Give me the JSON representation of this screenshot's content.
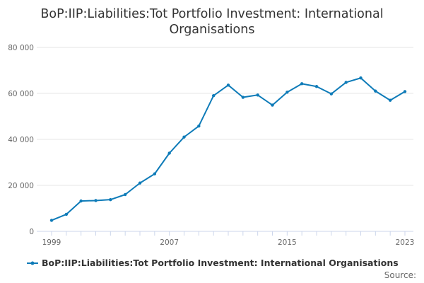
{
  "colors": {
    "series": "#0e7bb8",
    "grid": "#e6e6e6",
    "axis": "#ccd6eb",
    "text": "#333333",
    "tick_text": "#666666"
  },
  "chart_data": {
    "type": "line",
    "title": "BoP:IIP:Liabilities:Tot Portfolio Investment: International Organisations",
    "title_lines": [
      "BoP:IIP:Liabilities:Tot Portfolio Investment: International",
      "Organisations"
    ],
    "xlabel": "",
    "ylabel": "",
    "x": [
      1999,
      2000,
      2001,
      2002,
      2003,
      2004,
      2005,
      2006,
      2007,
      2008,
      2009,
      2010,
      2011,
      2012,
      2013,
      2014,
      2015,
      2016,
      2017,
      2018,
      2019,
      2020,
      2021,
      2022,
      2023
    ],
    "series": [
      {
        "name": "BoP:IIP:Liabilities:Tot Portfolio Investment: International Organisations",
        "values": [
          4800,
          7400,
          13200,
          13400,
          13800,
          16000,
          21000,
          25000,
          34000,
          41000,
          45800,
          59000,
          63600,
          58300,
          59300,
          54900,
          60500,
          64200,
          63000,
          59800,
          64800,
          66700,
          61000,
          57000,
          60800
        ]
      }
    ],
    "ylim": [
      0,
      80000
    ],
    "yticks": [
      0,
      20000,
      40000,
      60000,
      80000
    ],
    "ytick_labels": [
      "0",
      "20 000",
      "40 000",
      "60 000",
      "80 000"
    ],
    "xticks": [
      1999,
      2007,
      2015,
      2023
    ],
    "xtick_labels": [
      "1999",
      "2007",
      "2015",
      "2023"
    ],
    "grid": true,
    "legend": "bottom-center"
  },
  "footer": {
    "source_label": "Source:"
  }
}
